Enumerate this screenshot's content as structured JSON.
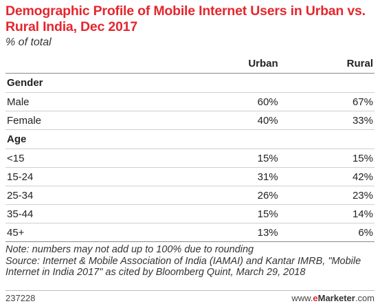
{
  "chart_data": {
    "type": "table",
    "title": "Demographic Profile of Mobile Internet Users in Urban vs. Rural India, Dec 2017",
    "subtitle": "% of total",
    "columns": [
      "Urban",
      "Rural"
    ],
    "sections": [
      {
        "name": "Gender",
        "rows": [
          {
            "label": "Male",
            "values": [
              "60%",
              "67%"
            ]
          },
          {
            "label": "Female",
            "values": [
              "40%",
              "33%"
            ]
          }
        ]
      },
      {
        "name": "Age",
        "rows": [
          {
            "label": "<15",
            "values": [
              "15%",
              "15%"
            ]
          },
          {
            "label": "15-24",
            "values": [
              "31%",
              "42%"
            ]
          },
          {
            "label": "25-34",
            "values": [
              "26%",
              "23%"
            ]
          },
          {
            "label": "35-44",
            "values": [
              "15%",
              "14%"
            ]
          },
          {
            "label": "45+",
            "values": [
              "13%",
              "6%"
            ]
          }
        ]
      }
    ],
    "note": "Note: numbers may not add up to 100% due to rounding",
    "source": "Source: Internet & Mobile Association of India (IAMAI) and Kantar IMRB, \"Mobile Internet in India 2017\" as cited by Bloomberg Quint, March 29, 2018"
  },
  "footer": {
    "chart_id": "237228",
    "brand_prefix": "www.",
    "brand_e": "e",
    "brand_name": "Marketer",
    "brand_suffix": ".com"
  },
  "colors": {
    "title": "#e5262d",
    "brand": "#e5262d"
  }
}
